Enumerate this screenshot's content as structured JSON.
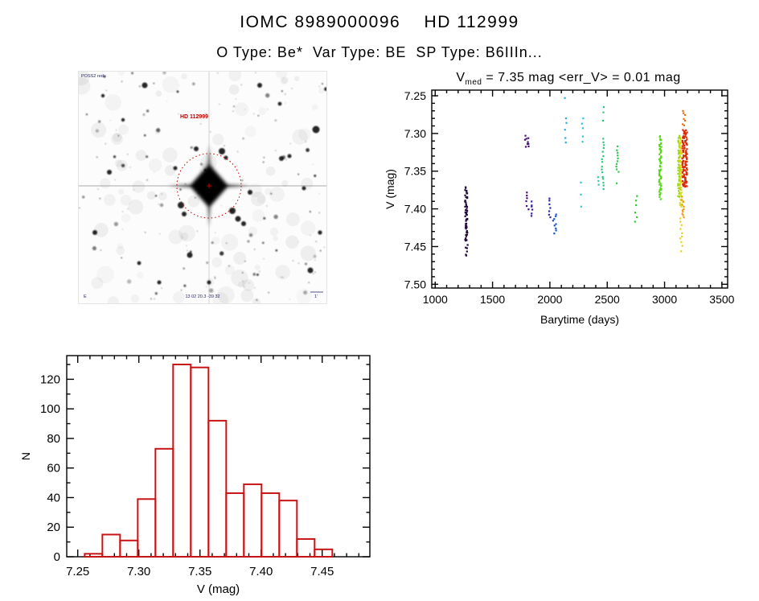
{
  "header": {
    "title": "IOMC 8989000096    HD 112999",
    "subtitle": "O Type: Be*  Var Type: BE  SP Type: B6IIIn..."
  },
  "finding_chart": {
    "target_label": "HD 112999",
    "survey_label": "POSS2 red",
    "coords_label": "13 02 20.3  -39 32",
    "orientation_label": "E",
    "scale_label": "1'",
    "marker_color": "#c00000",
    "annotation_color": "#26266e"
  },
  "chart_data": [
    {
      "type": "scatter",
      "name": "light_curve",
      "title": {
        "var": "V",
        "sub": "med",
        "rest": " = 7.35 mag <err_V> = 0.01 mag"
      },
      "xlabel": "Barytime (days)",
      "ylabel": "V (mag)",
      "xlim": [
        970,
        3550
      ],
      "ylim_top": 7.2425,
      "ylim_bottom": 7.505,
      "xticks": [
        1000,
        1500,
        2000,
        2500,
        3000,
        3500
      ],
      "x_minor_step": 100,
      "yticks": [
        7.25,
        7.3,
        7.35,
        7.4,
        7.45,
        7.5
      ],
      "y_minor_step": 0.01,
      "axis_color": "#000000",
      "clusters": [
        {
          "x": 1270,
          "color": "#1e0636",
          "vmin": 7.371,
          "vmax": 7.443,
          "n": 48
        },
        {
          "x": 1273,
          "color": "#1e0636",
          "vmin": 7.447,
          "vmax": 7.463,
          "n": 6
        },
        {
          "x": 1800,
          "color": "#46107c",
          "vmin": 7.304,
          "vmax": 7.318,
          "n": 9,
          "w": 5
        },
        {
          "x": 1804,
          "color": "#46107c",
          "vmin": 7.378,
          "vmax": 7.4,
          "n": 6
        },
        {
          "x": 1843,
          "color": "#3c1a9c",
          "vmin": 7.39,
          "vmax": 7.41,
          "n": 6
        },
        {
          "x": 2000,
          "color": "#2f2aa8",
          "vmin": 7.385,
          "vmax": 7.412,
          "n": 7
        },
        {
          "x": 2040,
          "color": "#1d55c8",
          "vmin": 7.408,
          "vmax": 7.432,
          "n": 9,
          "w": 5
        },
        {
          "x": 2138,
          "color": "#27aede",
          "values": [
            7.253,
            7.28,
            7.286,
            7.295,
            7.306,
            7.312
          ]
        },
        {
          "x": 2280,
          "color": "#2cc3dc",
          "values": [
            7.28,
            7.287,
            7.293,
            7.304,
            7.311,
            7.365,
            7.381,
            7.397
          ]
        },
        {
          "x": 2420,
          "color": "#2accaa",
          "values": [
            7.358,
            7.363,
            7.368
          ]
        },
        {
          "x": 2460,
          "color": "#2bc87c",
          "values": [
            7.265,
            7.272,
            7.283
          ]
        },
        {
          "x": 2462,
          "color": "#2bc87c",
          "vmin": 7.306,
          "vmax": 7.375,
          "n": 16
        },
        {
          "x": 2590,
          "color": "#32c94e",
          "vmin": 7.318,
          "vmax": 7.352,
          "n": 10
        },
        {
          "x": 2592,
          "color": "#32c94e",
          "values": [
            7.366
          ]
        },
        {
          "x": 2752,
          "color": "#2fcb2f",
          "values": [
            7.383,
            7.389,
            7.395,
            7.405,
            7.411,
            7.417
          ]
        },
        {
          "x": 2962,
          "color": "#55d716",
          "vmin": 7.304,
          "vmax": 7.386,
          "n": 55
        },
        {
          "x": 3128,
          "color": "#a2d714",
          "vmin": 7.303,
          "vmax": 7.385,
          "n": 60
        },
        {
          "x": 3142,
          "color": "#ddd816",
          "vmin": 7.308,
          "vmax": 7.398,
          "n": 40
        },
        {
          "x": 3148,
          "color": "#e8d21a",
          "vmin": 7.412,
          "vmax": 7.455,
          "n": 10
        },
        {
          "x": 3158,
          "color": "#f09c10",
          "vmin": 7.385,
          "vmax": 7.411,
          "n": 12
        },
        {
          "x": 3168,
          "color": "#ec6c14",
          "vmin": 7.269,
          "vmax": 7.29,
          "n": 7
        },
        {
          "x": 3176,
          "color": "#d92a07",
          "vmin": 7.295,
          "vmax": 7.372,
          "n": 110,
          "w": 6
        }
      ]
    },
    {
      "type": "bar",
      "name": "v_histogram",
      "xlabel": "V (mag)",
      "ylabel": "N",
      "bar_color": "#c81414",
      "axis_color": "#000000",
      "xlim": [
        7.241,
        7.489
      ],
      "ylim": [
        0,
        136
      ],
      "xticks": [
        7.25,
        7.3,
        7.35,
        7.4,
        7.45
      ],
      "x_minor_step": 0.01,
      "yticks": [
        0,
        20,
        40,
        60,
        80,
        100,
        120
      ],
      "y_minor_step": 10,
      "bin_start": 7.2557,
      "bin_width": 0.01447,
      "counts": [
        2,
        15,
        11,
        39,
        73,
        130,
        128,
        92,
        43,
        49,
        43,
        38,
        12,
        5
      ]
    }
  ]
}
